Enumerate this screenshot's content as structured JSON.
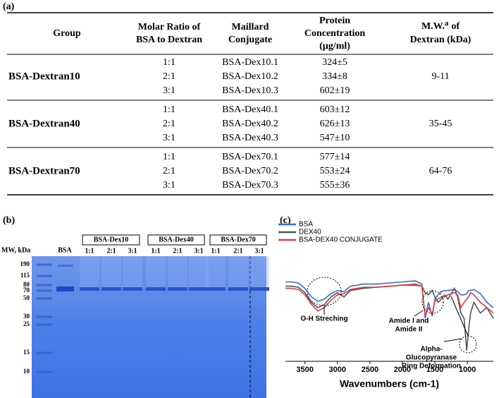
{
  "panels": {
    "a": "(a)",
    "b": "(b)",
    "c": "(c)"
  },
  "table": {
    "header": [
      [
        "Group"
      ],
      [
        "Molar Ratio of",
        "BSA to Dextran"
      ],
      [
        "Maillard",
        "Conjugate"
      ],
      [
        "Protein",
        "Concentration",
        "(µg/ml)"
      ]
    ],
    "mw_header": {
      "text": "M.W.",
      "sup": "a",
      "rest": "of",
      "line2": "Dextran (kDa)"
    },
    "groups": [
      {
        "name": "BSA-Dextran10",
        "mw": "9-11",
        "rows": [
          [
            "1:1",
            "BSA-Dex10.1",
            "324±5"
          ],
          [
            "2:1",
            "BSA-Dex10.2",
            "334±8"
          ],
          [
            "3:1",
            "BSA-Dex10.3",
            "602±19"
          ]
        ]
      },
      {
        "name": "BSA-Dextran40",
        "mw": "35-45",
        "rows": [
          [
            "1:1",
            "BSA-Dex40.1",
            "603±12"
          ],
          [
            "2:1",
            "BSA-Dex40.2",
            "626±13"
          ],
          [
            "3:1",
            "BSA-Dex40.3",
            "547±10"
          ]
        ]
      },
      {
        "name": "BSA-Dextran70",
        "mw": "64-76",
        "rows": [
          [
            "1:1",
            "BSA-Dex70.1",
            "577±14"
          ],
          [
            "2:1",
            "BSA-Dex70.2",
            "553±24"
          ],
          [
            "3:1",
            "BSA-Dex70.3",
            "555±36"
          ]
        ]
      }
    ]
  },
  "gel": {
    "mw_title": "MW, kDa",
    "bsa": "BSA",
    "mw_labels": [
      "190",
      "115",
      "80",
      "70",
      "50",
      "30",
      "25",
      "15",
      "10"
    ],
    "groups": [
      {
        "name": "BSA-Dex10",
        "lanes": [
          "1:1",
          "2:1",
          "3:1"
        ]
      },
      {
        "name": "BSA-Dex40",
        "lanes": [
          "1:1",
          "2:1",
          "3:1"
        ]
      },
      {
        "name": "BSA-Dex70",
        "lanes": [
          "1:1",
          "2:1",
          "3:1"
        ]
      }
    ]
  },
  "chart_data": {
    "type": "line",
    "xlabel": "Wavenumbers (cm-1)",
    "x": [
      3800,
      3700,
      3600,
      3500,
      3400,
      3300,
      3200,
      3100,
      3000,
      2900,
      2800,
      2600,
      2400,
      2200,
      2000,
      1800,
      1700,
      1650,
      1600,
      1540,
      1500,
      1450,
      1400,
      1350,
      1300,
      1200,
      1150,
      1100,
      1050,
      1010,
      980,
      950,
      900,
      800,
      700,
      600
    ],
    "xlim": [
      3800,
      600
    ],
    "xticks": [
      3500,
      3000,
      2500,
      2000,
      1500,
      1000
    ],
    "ylim": [
      0,
      100
    ],
    "series": [
      {
        "name": "BSA",
        "color": "#2f6fd6",
        "values": [
          74,
          74,
          73,
          68,
          60,
          56,
          58,
          63,
          66,
          65,
          70,
          72,
          72,
          73,
          74,
          75,
          72,
          40,
          55,
          42,
          58,
          62,
          65,
          66,
          66,
          67,
          65,
          62,
          62,
          63,
          66,
          66,
          67,
          63,
          55,
          50
        ]
      },
      {
        "name": "DEX40",
        "color": "#555555",
        "values": [
          70,
          70,
          69,
          64,
          55,
          50,
          53,
          60,
          64,
          60,
          66,
          68,
          69,
          70,
          71,
          71,
          70,
          64,
          62,
          66,
          60,
          55,
          58,
          62,
          58,
          68,
          60,
          45,
          40,
          10,
          30,
          45,
          55,
          45,
          50,
          40
        ]
      },
      {
        "name": "BSA-DEX40 CONJUGATE",
        "color": "#e03a3a",
        "values": [
          68,
          68,
          67,
          62,
          53,
          47,
          50,
          57,
          62,
          63,
          67,
          69,
          69,
          70,
          71,
          72,
          70,
          42,
          50,
          44,
          56,
          58,
          60,
          60,
          62,
          64,
          62,
          50,
          55,
          58,
          60,
          64,
          62,
          55,
          50,
          45
        ]
      }
    ],
    "annotations": [
      [
        "O-H Streching"
      ],
      [
        "Amide I and",
        "Amide II"
      ],
      [
        "Alpha-",
        "Glucopyranase",
        "Ring Deformation"
      ]
    ]
  }
}
